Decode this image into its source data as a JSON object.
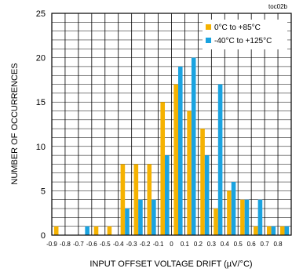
{
  "chart_data": {
    "type": "bar",
    "tag": "toc02b",
    "xlabel": "INPUT OFFSET VOLTAGE DRIFT (µV/°C)",
    "ylabel": "NUMBER OF OCCURRENCES",
    "ylim": [
      0,
      25
    ],
    "yticks": [
      "0",
      "5",
      "10",
      "15",
      "20",
      "25"
    ],
    "categories": [
      "-0.9",
      "-0.8",
      "-0.7",
      "-0.6",
      "-0.5",
      "-0.4",
      "-0.3",
      "-0.2",
      "-0.1",
      "0",
      "0.1",
      "0.2",
      "0.3",
      "0.4",
      "0.5",
      "0.6",
      "0.7",
      "0.8"
    ],
    "grid": true,
    "legend": "top-right",
    "series": [
      {
        "name": "0°C to +85°C",
        "color": "#f5b200",
        "values": [
          1,
          0,
          0,
          1,
          1,
          8,
          8,
          8,
          15,
          17,
          14,
          12,
          3,
          5,
          4,
          1,
          1,
          1
        ]
      },
      {
        "name": "-40°C to +125°C",
        "color": "#1aa3e0",
        "values": [
          0,
          0,
          1,
          0,
          0,
          3,
          4,
          4,
          9,
          19,
          20,
          9,
          17,
          6,
          4,
          4,
          1,
          1
        ]
      }
    ]
  }
}
